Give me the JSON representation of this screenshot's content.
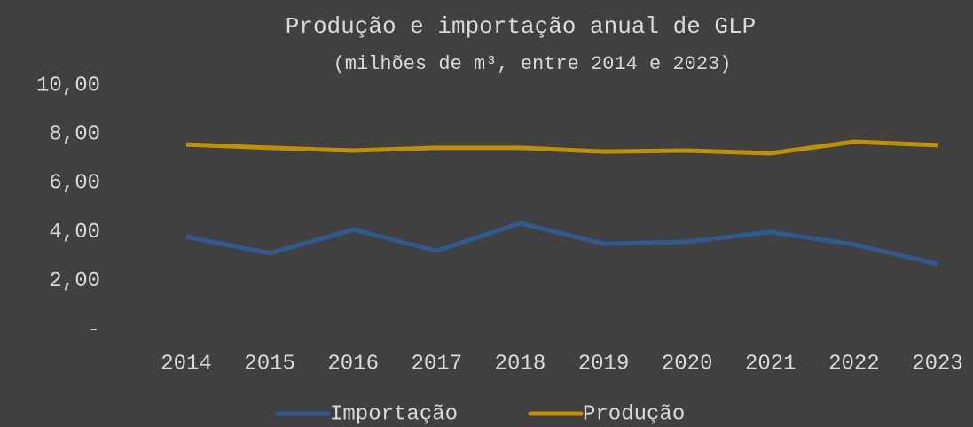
{
  "chart_data": {
    "type": "line",
    "title": "Produção e importação anual de GLP",
    "subtitle": "(milhões de  m³, entre 2014 e 2023)",
    "categories": [
      "2014",
      "2015",
      "2016",
      "2017",
      "2018",
      "2019",
      "2020",
      "2021",
      "2022",
      "2023"
    ],
    "series": [
      {
        "name": "Importação",
        "color": "#2f5a8f",
        "values": [
          3.8,
          3.12,
          4.09,
          3.22,
          4.35,
          3.51,
          3.59,
          3.99,
          3.48,
          2.68
        ]
      },
      {
        "name": "Produção",
        "color": "#bf9000",
        "values": [
          7.57,
          7.43,
          7.32,
          7.43,
          7.43,
          7.28,
          7.32,
          7.21,
          7.68,
          7.54
        ]
      }
    ],
    "ylim": [
      0,
      10
    ],
    "yticks": [
      {
        "value": 0,
        "label": "-"
      },
      {
        "value": 2,
        "label": "2,00"
      },
      {
        "value": 4,
        "label": "4,00"
      },
      {
        "value": 6,
        "label": "6,00"
      },
      {
        "value": 8,
        "label": "8,00"
      },
      {
        "value": 10,
        "label": "10,00"
      }
    ],
    "grid": false,
    "legend": "bottom"
  }
}
